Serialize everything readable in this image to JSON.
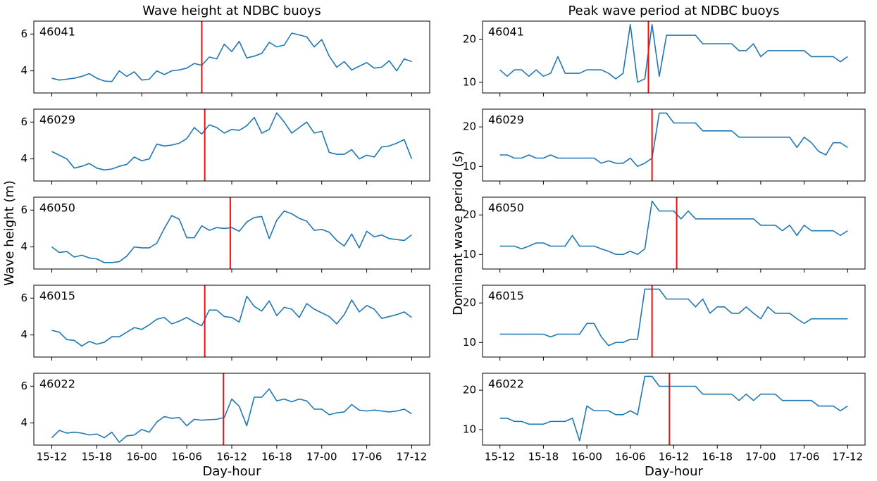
{
  "chart_data": [
    {
      "type": "line",
      "title": "Wave height at NDBC buoys",
      "annotation": "46041",
      "color": "#1f77b4",
      "x": [
        0,
        1,
        2,
        3,
        4,
        5,
        6,
        7,
        8,
        9,
        10,
        11,
        12,
        13,
        14,
        15,
        16,
        17,
        18,
        19,
        20,
        21,
        22,
        23,
        24,
        25,
        26,
        27,
        28,
        29,
        30,
        31,
        32,
        33,
        34,
        35,
        36,
        37,
        38,
        39,
        40,
        41,
        42,
        43,
        44,
        45,
        46,
        47,
        48
      ],
      "values": [
        3.6,
        3.5,
        3.55,
        3.6,
        3.7,
        3.85,
        3.6,
        3.45,
        3.42,
        4.0,
        3.7,
        3.95,
        3.5,
        3.55,
        4.0,
        3.8,
        4.0,
        4.05,
        4.15,
        4.4,
        4.3,
        4.75,
        4.65,
        5.45,
        5.05,
        5.6,
        4.7,
        4.8,
        4.95,
        5.55,
        5.3,
        5.4,
        6.05,
        5.95,
        5.85,
        5.3,
        5.7,
        4.8,
        4.2,
        4.5,
        4.05,
        4.25,
        4.45,
        4.15,
        4.2,
        4.55,
        4.0,
        4.65,
        4.5
      ],
      "vline": {
        "x": 20,
        "color": "#e8110f"
      },
      "xlim": [
        -2.4,
        50.4
      ],
      "ylim": [
        2.8,
        6.7
      ],
      "xticks": [
        0,
        6,
        12,
        18,
        24,
        30,
        36,
        42,
        48
      ],
      "yticks": [
        4,
        6
      ]
    },
    {
      "type": "line",
      "annotation": "46029",
      "color": "#1f77b4",
      "x": [
        0,
        1,
        2,
        3,
        4,
        5,
        6,
        7,
        8,
        9,
        10,
        11,
        12,
        13,
        14,
        15,
        16,
        17,
        18,
        19,
        20,
        21,
        22,
        23,
        24,
        25,
        26,
        27,
        28,
        29,
        30,
        31,
        32,
        33,
        34,
        35,
        36,
        37,
        38,
        39,
        40,
        41,
        42,
        43,
        44,
        45,
        46,
        47,
        48
      ],
      "values": [
        4.4,
        4.2,
        4.0,
        3.5,
        3.6,
        3.75,
        3.5,
        3.4,
        3.45,
        3.6,
        3.7,
        4.1,
        3.9,
        4.0,
        4.8,
        4.7,
        4.75,
        4.85,
        5.1,
        5.7,
        5.35,
        5.85,
        5.7,
        5.4,
        5.6,
        5.55,
        5.8,
        6.25,
        5.4,
        5.6,
        6.5,
        6.0,
        5.4,
        5.7,
        6.0,
        5.4,
        5.5,
        4.35,
        4.25,
        4.25,
        4.5,
        4.0,
        4.2,
        4.1,
        4.65,
        4.7,
        4.85,
        5.05,
        4.0
      ],
      "vline": {
        "x": 20.4,
        "color": "#e8110f"
      },
      "xlim": [
        -2.4,
        50.4
      ],
      "ylim": [
        2.8,
        6.7
      ],
      "xticks": [
        0,
        6,
        12,
        18,
        24,
        30,
        36,
        42,
        48
      ],
      "yticks": [
        4,
        6
      ]
    },
    {
      "type": "line",
      "ylabel": "Wave height (m)",
      "annotation": "46050",
      "color": "#1f77b4",
      "x": [
        0,
        1,
        2,
        3,
        4,
        5,
        6,
        7,
        8,
        9,
        10,
        11,
        12,
        13,
        14,
        15,
        16,
        17,
        18,
        19,
        20,
        21,
        22,
        23,
        24,
        25,
        26,
        27,
        28,
        29,
        30,
        31,
        32,
        33,
        34,
        35,
        36,
        37,
        38,
        39,
        40,
        41,
        42,
        43,
        44,
        45,
        46,
        47,
        48
      ],
      "values": [
        4.0,
        3.7,
        3.75,
        3.45,
        3.55,
        3.4,
        3.35,
        3.15,
        3.15,
        3.2,
        3.5,
        4.0,
        3.95,
        3.95,
        4.2,
        5.0,
        5.7,
        5.5,
        4.5,
        4.5,
        5.15,
        4.9,
        5.05,
        5.0,
        5.05,
        4.85,
        5.35,
        5.6,
        5.65,
        4.45,
        5.45,
        5.95,
        5.8,
        5.55,
        5.4,
        4.9,
        4.95,
        4.8,
        4.35,
        4.05,
        4.7,
        3.95,
        4.85,
        4.55,
        4.65,
        4.45,
        4.4,
        4.35,
        4.65
      ],
      "vline": {
        "x": 23.8,
        "color": "#e8110f"
      },
      "xlim": [
        -2.4,
        50.4
      ],
      "ylim": [
        2.8,
        6.7
      ],
      "xticks": [
        0,
        6,
        12,
        18,
        24,
        30,
        36,
        42,
        48
      ],
      "yticks": [
        4,
        6
      ]
    },
    {
      "type": "line",
      "annotation": "46015",
      "color": "#1f77b4",
      "x": [
        0,
        1,
        2,
        3,
        4,
        5,
        6,
        7,
        8,
        9,
        10,
        11,
        12,
        13,
        14,
        15,
        16,
        17,
        18,
        19,
        20,
        21,
        22,
        23,
        24,
        25,
        26,
        27,
        28,
        29,
        30,
        31,
        32,
        33,
        34,
        35,
        36,
        37,
        38,
        39,
        40,
        41,
        42,
        43,
        44,
        45,
        46,
        47,
        48
      ],
      "values": [
        4.25,
        4.15,
        3.75,
        3.7,
        3.4,
        3.65,
        3.5,
        3.6,
        3.9,
        3.9,
        4.15,
        4.4,
        4.3,
        4.55,
        4.85,
        4.95,
        4.6,
        4.75,
        4.95,
        4.7,
        4.5,
        5.35,
        5.35,
        5.0,
        4.95,
        4.7,
        6.1,
        5.55,
        5.3,
        5.85,
        5.05,
        5.5,
        5.4,
        4.95,
        5.7,
        5.4,
        5.2,
        5.0,
        4.6,
        5.1,
        5.9,
        5.25,
        5.6,
        5.4,
        4.9,
        5.0,
        5.1,
        5.25,
        4.95
      ],
      "vline": {
        "x": 20.4,
        "color": "#e8110f"
      },
      "xlim": [
        -2.4,
        50.4
      ],
      "ylim": [
        2.8,
        6.7
      ],
      "xticks": [
        0,
        6,
        12,
        18,
        24,
        30,
        36,
        42,
        48
      ],
      "yticks": [
        4,
        6
      ]
    },
    {
      "type": "line",
      "xlabel": "Day-hour",
      "annotation": "46022",
      "color": "#1f77b4",
      "x": [
        0,
        1,
        2,
        3,
        4,
        5,
        6,
        7,
        8,
        9,
        10,
        11,
        12,
        13,
        14,
        15,
        16,
        17,
        18,
        19,
        20,
        21,
        22,
        23,
        24,
        25,
        26,
        27,
        28,
        29,
        30,
        31,
        32,
        33,
        34,
        35,
        36,
        37,
        38,
        39,
        40,
        41,
        42,
        43,
        44,
        45,
        46,
        47,
        48
      ],
      "values": [
        3.2,
        3.6,
        3.45,
        3.5,
        3.45,
        3.35,
        3.4,
        3.2,
        3.5,
        2.95,
        3.3,
        3.35,
        3.65,
        3.5,
        4.05,
        4.35,
        4.25,
        4.3,
        3.85,
        4.2,
        4.15,
        4.18,
        4.2,
        4.3,
        5.3,
        4.9,
        3.85,
        5.4,
        5.4,
        5.85,
        5.2,
        5.3,
        5.15,
        5.3,
        5.2,
        4.75,
        4.75,
        4.45,
        4.55,
        4.6,
        5.0,
        4.7,
        4.65,
        4.7,
        4.65,
        4.6,
        4.65,
        4.75,
        4.5
      ],
      "vline": {
        "x": 22.9,
        "color": "#e8110f"
      },
      "xlim": [
        -2.4,
        50.4
      ],
      "ylim": [
        2.8,
        6.7
      ],
      "xticks": [
        {
          "value": 0,
          "label": "15-12"
        },
        {
          "value": 6,
          "label": "15-18"
        },
        {
          "value": 12,
          "label": "16-00"
        },
        {
          "value": 18,
          "label": "16-06"
        },
        {
          "value": 24,
          "label": "16-12"
        },
        {
          "value": 30,
          "label": "16-18"
        },
        {
          "value": 36,
          "label": "17-00"
        },
        {
          "value": 42,
          "label": "17-06"
        },
        {
          "value": 48,
          "label": "17-12"
        }
      ],
      "yticks": [
        4,
        6
      ]
    },
    {
      "type": "line",
      "title": "Peak wave period at NDBC buoys",
      "annotation": "46041",
      "color": "#1f77b4",
      "x": [
        0,
        1,
        2,
        3,
        4,
        5,
        6,
        7,
        8,
        9,
        10,
        11,
        12,
        13,
        14,
        15,
        16,
        17,
        18,
        19,
        20,
        21,
        22,
        23,
        24,
        25,
        26,
        27,
        28,
        29,
        30,
        31,
        32,
        33,
        34,
        35,
        36,
        37,
        38,
        39,
        40,
        41,
        42,
        43,
        44,
        45,
        46,
        47,
        48
      ],
      "values": [
        12.9,
        11.4,
        12.9,
        12.9,
        11.4,
        12.9,
        11.4,
        12.1,
        16.0,
        12.1,
        12.1,
        12.1,
        12.9,
        12.9,
        12.9,
        12.1,
        10.8,
        12.1,
        23.5,
        10.0,
        10.8,
        23.5,
        11.4,
        21.0,
        21.0,
        21.0,
        21.0,
        21.0,
        19.0,
        19.0,
        19.0,
        19.0,
        19.0,
        17.4,
        17.4,
        19.0,
        16.0,
        17.4,
        17.4,
        17.4,
        17.4,
        17.4,
        17.4,
        16.0,
        16.0,
        16.0,
        16.0,
        14.8,
        16.0
      ],
      "vline": {
        "x": 20.5,
        "color": "#e8110f"
      },
      "xlim": [
        -2.4,
        50.4
      ],
      "ylim": [
        7.5,
        24.3
      ],
      "xticks": [
        0,
        6,
        12,
        18,
        24,
        30,
        36,
        42,
        48
      ],
      "yticks": [
        10,
        20
      ]
    },
    {
      "type": "line",
      "annotation": "46029",
      "color": "#1f77b4",
      "x": [
        0,
        1,
        2,
        3,
        4,
        5,
        6,
        7,
        8,
        9,
        10,
        11,
        12,
        13,
        14,
        15,
        16,
        17,
        18,
        19,
        20,
        21,
        22,
        23,
        24,
        25,
        26,
        27,
        28,
        29,
        30,
        31,
        32,
        33,
        34,
        35,
        36,
        37,
        38,
        39,
        40,
        41,
        42,
        43,
        44,
        45,
        46,
        47,
        48
      ],
      "values": [
        12.9,
        12.9,
        12.1,
        12.1,
        12.9,
        12.1,
        12.1,
        12.9,
        12.1,
        12.1,
        12.1,
        12.1,
        12.1,
        12.1,
        10.8,
        11.4,
        10.8,
        10.8,
        12.1,
        10.0,
        10.8,
        12.1,
        23.5,
        23.5,
        21.0,
        21.0,
        21.0,
        21.0,
        19.0,
        19.0,
        19.0,
        19.0,
        19.0,
        17.4,
        17.4,
        17.4,
        17.4,
        17.4,
        17.4,
        17.4,
        17.4,
        14.8,
        17.4,
        16.0,
        13.8,
        12.9,
        16.0,
        16.0,
        14.8
      ],
      "vline": {
        "x": 21,
        "color": "#e8110f"
      },
      "xlim": [
        -2.4,
        50.4
      ],
      "ylim": [
        6.3,
        24.5
      ],
      "xticks": [
        0,
        6,
        12,
        18,
        24,
        30,
        36,
        42,
        48
      ],
      "yticks": [
        10,
        20
      ]
    },
    {
      "type": "line",
      "ylabel": "Dominant wave period (s)",
      "annotation": "46050",
      "color": "#1f77b4",
      "x": [
        0,
        1,
        2,
        3,
        4,
        5,
        6,
        7,
        8,
        9,
        10,
        11,
        12,
        13,
        14,
        15,
        16,
        17,
        18,
        19,
        20,
        21,
        22,
        23,
        24,
        25,
        26,
        27,
        28,
        29,
        30,
        31,
        32,
        33,
        34,
        35,
        36,
        37,
        38,
        39,
        40,
        41,
        42,
        43,
        44,
        45,
        46,
        47,
        48
      ],
      "values": [
        12.1,
        12.1,
        12.1,
        11.4,
        12.1,
        12.9,
        12.9,
        12.1,
        12.1,
        12.1,
        14.8,
        12.1,
        12.1,
        12.1,
        11.4,
        10.8,
        10.0,
        10.0,
        10.8,
        10.0,
        11.4,
        23.5,
        21.0,
        21.0,
        21.0,
        19.0,
        21.0,
        19.0,
        19.0,
        19.0,
        19.0,
        19.0,
        19.0,
        19.0,
        19.0,
        19.0,
        17.4,
        17.4,
        17.4,
        16.0,
        17.4,
        14.8,
        17.4,
        16.0,
        16.0,
        16.0,
        16.0,
        14.8,
        16.0
      ],
      "vline": {
        "x": 24.4,
        "color": "#e8110f"
      },
      "xlim": [
        -2.4,
        50.4
      ],
      "ylim": [
        6.3,
        24.5
      ],
      "xticks": [
        0,
        6,
        12,
        18,
        24,
        30,
        36,
        42,
        48
      ],
      "yticks": [
        10,
        20
      ]
    },
    {
      "type": "line",
      "annotation": "46015",
      "color": "#1f77b4",
      "x": [
        0,
        1,
        2,
        3,
        4,
        5,
        6,
        7,
        8,
        9,
        10,
        11,
        12,
        13,
        14,
        15,
        16,
        17,
        18,
        19,
        20,
        21,
        22,
        23,
        24,
        25,
        26,
        27,
        28,
        29,
        30,
        31,
        32,
        33,
        34,
        35,
        36,
        37,
        38,
        39,
        40,
        41,
        42,
        43,
        44,
        45,
        46,
        47,
        48
      ],
      "values": [
        12.1,
        12.1,
        12.1,
        12.1,
        12.1,
        12.1,
        12.1,
        11.4,
        12.1,
        12.1,
        12.1,
        12.1,
        14.8,
        14.8,
        11.4,
        9.2,
        10.0,
        10.0,
        10.8,
        10.8,
        23.5,
        23.5,
        23.5,
        21.0,
        21.0,
        21.0,
        21.0,
        19.0,
        21.0,
        17.4,
        19.0,
        19.0,
        17.4,
        17.4,
        19.0,
        17.4,
        16.0,
        19.0,
        17.4,
        17.4,
        17.4,
        16.0,
        14.8,
        16.0,
        16.0,
        16.0,
        16.0,
        16.0,
        16.0
      ],
      "vline": {
        "x": 21,
        "color": "#e8110f"
      },
      "xlim": [
        -2.4,
        50.4
      ],
      "ylim": [
        6.3,
        24.5
      ],
      "xticks": [
        0,
        6,
        12,
        18,
        24,
        30,
        36,
        42,
        48
      ],
      "yticks": [
        10,
        20
      ]
    },
    {
      "type": "line",
      "xlabel": "Day-hour",
      "annotation": "46022",
      "color": "#1f77b4",
      "x": [
        0,
        1,
        2,
        3,
        4,
        5,
        6,
        7,
        8,
        9,
        10,
        11,
        12,
        13,
        14,
        15,
        16,
        17,
        18,
        19,
        20,
        21,
        22,
        23,
        24,
        25,
        26,
        27,
        28,
        29,
        30,
        31,
        32,
        33,
        34,
        35,
        36,
        37,
        38,
        39,
        40,
        41,
        42,
        43,
        44,
        45,
        46,
        47,
        48
      ],
      "values": [
        12.9,
        12.9,
        12.1,
        12.1,
        11.4,
        11.4,
        11.4,
        12.1,
        12.1,
        12.1,
        12.9,
        7.2,
        16.0,
        14.8,
        14.8,
        14.8,
        13.8,
        13.8,
        14.8,
        13.8,
        23.5,
        23.5,
        21.0,
        21.0,
        21.0,
        21.0,
        21.0,
        21.0,
        19.0,
        19.0,
        19.0,
        19.0,
        19.0,
        17.4,
        19.0,
        17.4,
        19.0,
        19.0,
        19.0,
        17.4,
        17.4,
        17.4,
        17.4,
        17.4,
        16.0,
        16.0,
        16.0,
        14.8,
        16.0
      ],
      "vline": {
        "x": 23.4,
        "color": "#e8110f"
      },
      "xlim": [
        -2.4,
        50.4
      ],
      "ylim": [
        6.1,
        24.3
      ],
      "xticks": [
        {
          "value": 0,
          "label": "15-12"
        },
        {
          "value": 6,
          "label": "15-18"
        },
        {
          "value": 12,
          "label": "16-00"
        },
        {
          "value": 18,
          "label": "16-06"
        },
        {
          "value": 24,
          "label": "16-12"
        },
        {
          "value": 30,
          "label": "16-18"
        },
        {
          "value": 36,
          "label": "17-00"
        },
        {
          "value": 42,
          "label": "17-06"
        },
        {
          "value": 48,
          "label": "17-12"
        }
      ],
      "yticks": [
        10,
        20
      ]
    }
  ]
}
